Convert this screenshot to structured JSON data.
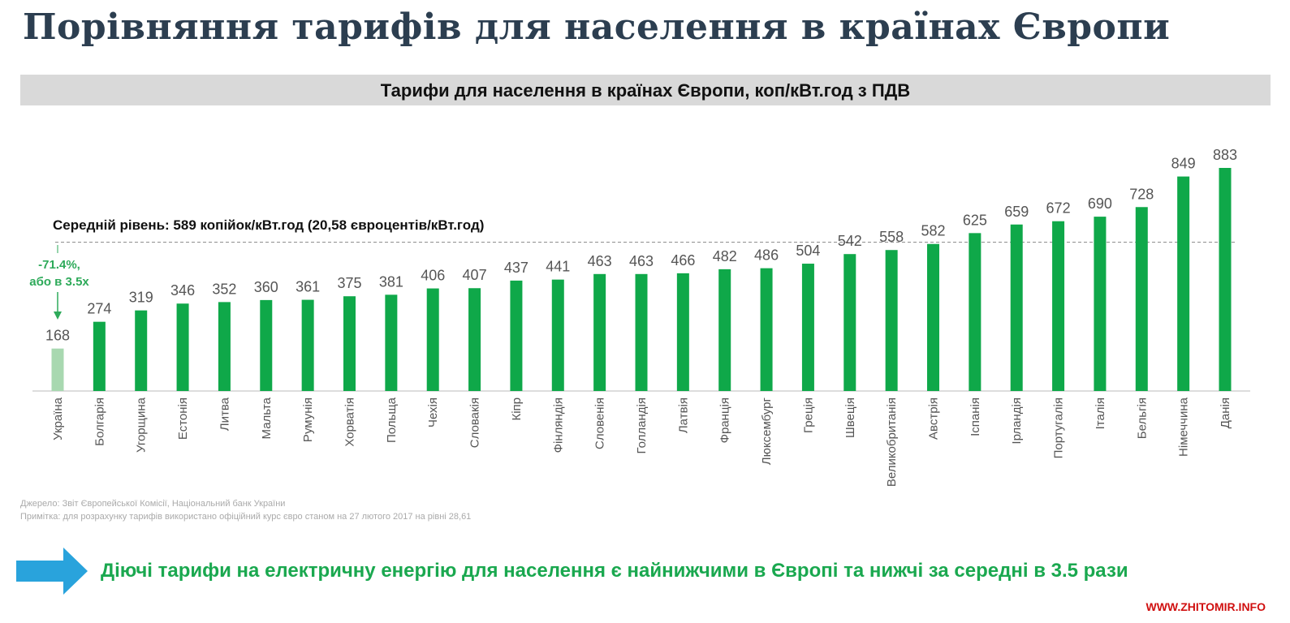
{
  "title": "Порівняння тарифів для населення в країнах Європи",
  "chart_data": {
    "type": "bar",
    "title": "Тарифи для населення в країнах Європи, коп/кВт.год з ПДВ",
    "categories": [
      "Україна",
      "Болгарія",
      "Угорщина",
      "Естонія",
      "Литва",
      "Мальта",
      "Румунія",
      "Хорватія",
      "Польща",
      "Чехія",
      "Словакія",
      "Кіпр",
      "Фінляндія",
      "Словенія",
      "Голландія",
      "Латвія",
      "Франція",
      "Люксембург",
      "Греція",
      "Швеція",
      "Великобританія",
      "Австрія",
      "Іспанія",
      "Ірландія",
      "Португалія",
      "Італія",
      "Бельгія",
      "Німеччина",
      "Данія"
    ],
    "values": [
      168,
      274,
      319,
      346,
      352,
      360,
      361,
      375,
      381,
      406,
      407,
      437,
      441,
      463,
      463,
      466,
      482,
      486,
      504,
      542,
      558,
      582,
      625,
      659,
      672,
      690,
      728,
      849,
      883
    ],
    "average": 589,
    "average_label": "Середній рівень: 589 копійок/кВт.год (20,58 євроцентів/кВт.год)",
    "annotation": [
      "-71.4%,",
      "або в 3.5х"
    ],
    "ylim": [
      0,
      900
    ],
    "colors": {
      "bar": "#0fa849",
      "highlight": "#a8d8b0",
      "label": "#555555"
    }
  },
  "notes": [
    "Джерело: Звіт Європейської Комісії, Національний банк України",
    "Примітка: для розрахунку тарифів використано офіційний курс євро станом на 27 лютого 2017 на рівні 28,61"
  ],
  "conclusion": "Діючі тарифи на електричну енергію для населення є найнижчими в Європі та нижчі за середні в 3.5 рази",
  "watermark": "WWW.ZHITOMIR.INFO"
}
